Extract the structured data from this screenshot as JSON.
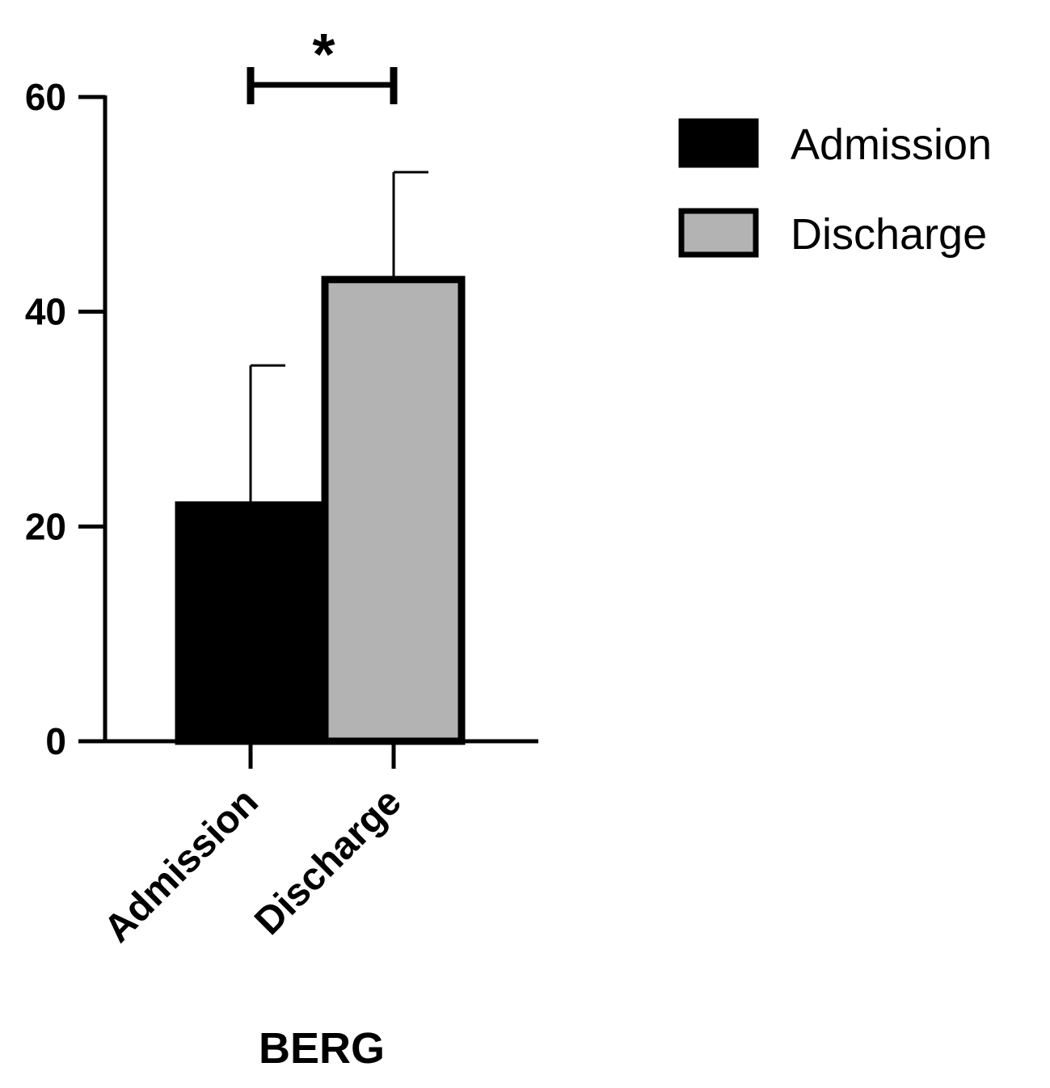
{
  "chart_data": {
    "type": "bar",
    "categories": [
      "Admission",
      "Discharge"
    ],
    "values": [
      22,
      43
    ],
    "error_upper": [
      35,
      53
    ],
    "colors": [
      "#000000",
      "#b3b3b3"
    ],
    "ylim": [
      0,
      60
    ],
    "yticks": [
      0,
      20,
      40,
      60
    ],
    "xlabel": "BERG",
    "ylabel": "",
    "significance": {
      "between": [
        0,
        1
      ],
      "label": "*"
    },
    "legend": {
      "position": "top-right",
      "entries": [
        {
          "label": "Admission",
          "color": "#000000"
        },
        {
          "label": "Discharge",
          "color": "#b3b3b3"
        }
      ]
    },
    "grid": false
  }
}
